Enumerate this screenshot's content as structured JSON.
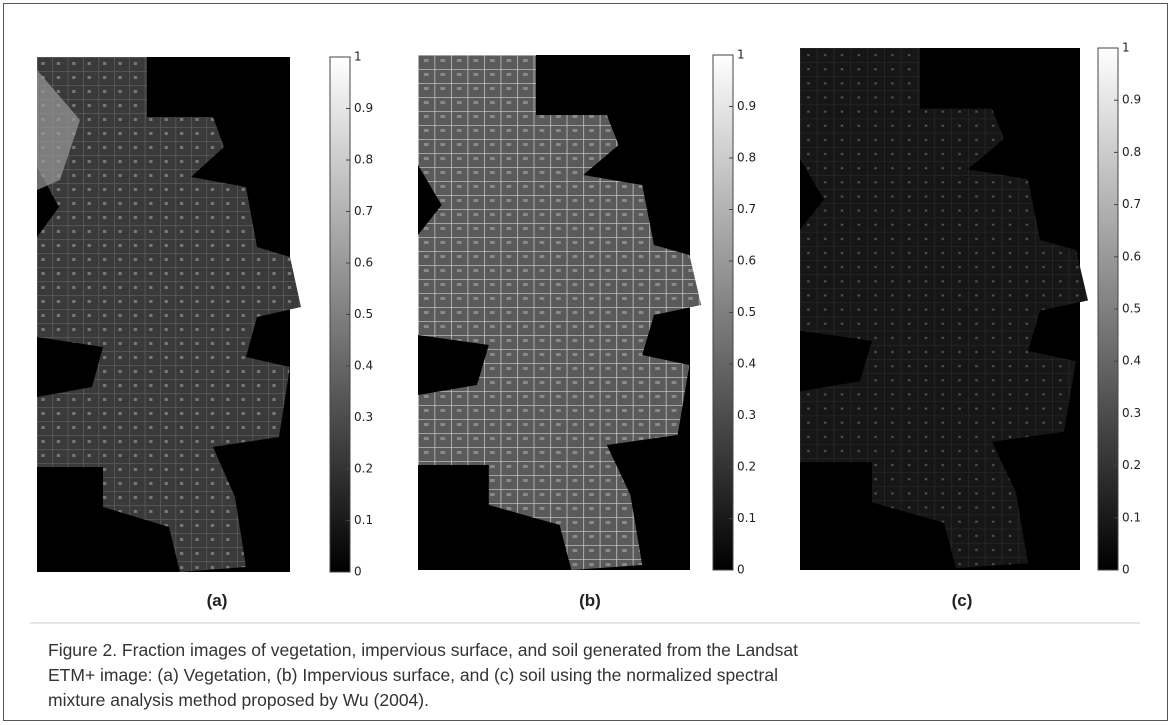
{
  "panels": [
    {
      "label": "(a)",
      "colorbar": {
        "lim": [
          0,
          1
        ],
        "ticks": [
          0,
          0.1,
          0.2,
          0.3,
          0.4,
          0.5,
          0.6,
          0.7,
          0.8,
          0.9,
          1
        ]
      }
    },
    {
      "label": "(b)",
      "colorbar": {
        "lim": [
          0,
          1
        ],
        "ticks": [
          0,
          0.1,
          0.2,
          0.3,
          0.4,
          0.5,
          0.6,
          0.7,
          0.8,
          0.9,
          1
        ]
      }
    },
    {
      "label": "(c)",
      "colorbar": {
        "lim": [
          0,
          1
        ],
        "ticks": [
          0,
          0.1,
          0.2,
          0.3,
          0.4,
          0.5,
          0.6,
          0.7,
          0.8,
          0.9,
          1
        ]
      }
    }
  ],
  "caption": {
    "lines": [
      "Figure 2. Fraction images of vegetation, impervious surface, and soil generated from the Landsat",
      "ETM+ image: (a) Vegetation, (b) Impervious surface, and (c) soil using the normalized spectral",
      "mixture analysis method proposed by Wu (2004)."
    ]
  }
}
